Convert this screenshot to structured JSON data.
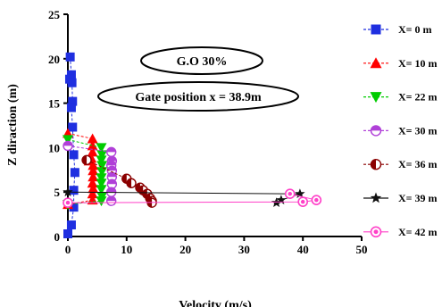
{
  "chart_data": {
    "type": "scatter",
    "title": "",
    "xlabel": "Velocity (m/s)",
    "ylabel": "Z diraction (m)",
    "xlim": [
      0,
      50
    ],
    "ylim": [
      0,
      25
    ],
    "xticks": [
      "0",
      "10",
      "20",
      "30",
      "40",
      "50"
    ],
    "yticks": [
      "0",
      "5",
      "10",
      "15",
      "20",
      "25"
    ],
    "grid": false,
    "legend_position": "right",
    "annotations": [
      "G.O 30%",
      "Gate position x = 38.9m"
    ],
    "series": [
      {
        "name": "X= 0 m",
        "color": "#1f2fe0",
        "marker": "square",
        "line": "dashed",
        "points": [
          [
            0,
            0.3
          ],
          [
            0.4,
            20.2
          ],
          [
            0.6,
            18.2
          ],
          [
            0.3,
            17.7
          ],
          [
            0.7,
            17.3
          ],
          [
            0.8,
            15.2
          ],
          [
            0.6,
            14.5
          ],
          [
            0.8,
            12.3
          ],
          [
            1.0,
            9.2
          ],
          [
            1.2,
            7.2
          ],
          [
            1.0,
            5.2
          ],
          [
            1.0,
            3.3
          ],
          [
            0.6,
            1.3
          ]
        ]
      },
      {
        "name": "X= 10 m",
        "color": "#ff0000",
        "marker": "triangle-up",
        "line": "dashed",
        "points": [
          [
            0,
            11.6
          ],
          [
            0,
            3.6
          ],
          [
            4.2,
            11.0
          ],
          [
            4.2,
            10.2
          ],
          [
            4.2,
            9.5
          ],
          [
            4.0,
            8.8
          ],
          [
            3.6,
            8.5
          ],
          [
            4.3,
            8.0
          ],
          [
            4.3,
            7.4
          ],
          [
            4.3,
            6.7
          ],
          [
            4.2,
            6.0
          ],
          [
            4.3,
            5.4
          ],
          [
            4.2,
            4.8
          ],
          [
            4.2,
            4.1
          ]
        ]
      },
      {
        "name": "X= 22 m",
        "color": "#00cc00",
        "marker": "triangle-down",
        "line": "dashed",
        "points": [
          [
            0,
            10.9
          ],
          [
            0,
            3.6
          ],
          [
            5.7,
            10.0
          ],
          [
            5.8,
            9.2
          ],
          [
            5.7,
            8.6
          ],
          [
            5.8,
            8.0
          ],
          [
            5.8,
            7.3
          ],
          [
            5.7,
            6.6
          ],
          [
            5.7,
            6.0
          ],
          [
            5.7,
            5.3
          ],
          [
            5.8,
            4.5
          ],
          [
            5.7,
            4.0
          ]
        ]
      },
      {
        "name": "X= 30 m",
        "color": "#b040d8",
        "marker": "half-circle",
        "line": "dashed",
        "points": [
          [
            0,
            10.2
          ],
          [
            7.4,
            9.5
          ],
          [
            7.5,
            8.5
          ],
          [
            7.4,
            8.0
          ],
          [
            7.5,
            7.4
          ],
          [
            7.5,
            6.7
          ],
          [
            7.5,
            5.9
          ],
          [
            7.4,
            5.0
          ],
          [
            7.4,
            4.0
          ]
        ]
      },
      {
        "name": "X= 36 m",
        "color": "#8b0000",
        "marker": "half-circle-h",
        "line": "dashed",
        "points": [
          [
            3.2,
            8.6
          ],
          [
            10.0,
            6.5
          ],
          [
            10.8,
            6.0
          ],
          [
            12.3,
            5.5
          ],
          [
            12.8,
            5.2
          ],
          [
            13.5,
            4.8
          ],
          [
            14.0,
            4.3
          ],
          [
            14.3,
            4.0
          ],
          [
            14.3,
            3.8
          ]
        ]
      },
      {
        "name": "X= 39 m",
        "color": "#111111",
        "marker": "star",
        "line": "solid",
        "points": [
          [
            0,
            5.0
          ],
          [
            35.5,
            3.8
          ],
          [
            36.3,
            4.1
          ],
          [
            39.5,
            4.8
          ]
        ]
      },
      {
        "name": "X= 42 m",
        "color": "#ff40c8",
        "marker": "circle",
        "line": "solid",
        "points": [
          [
            0,
            3.8
          ],
          [
            37.8,
            4.8
          ],
          [
            40.0,
            3.9
          ],
          [
            42.3,
            4.1
          ]
        ]
      }
    ]
  }
}
